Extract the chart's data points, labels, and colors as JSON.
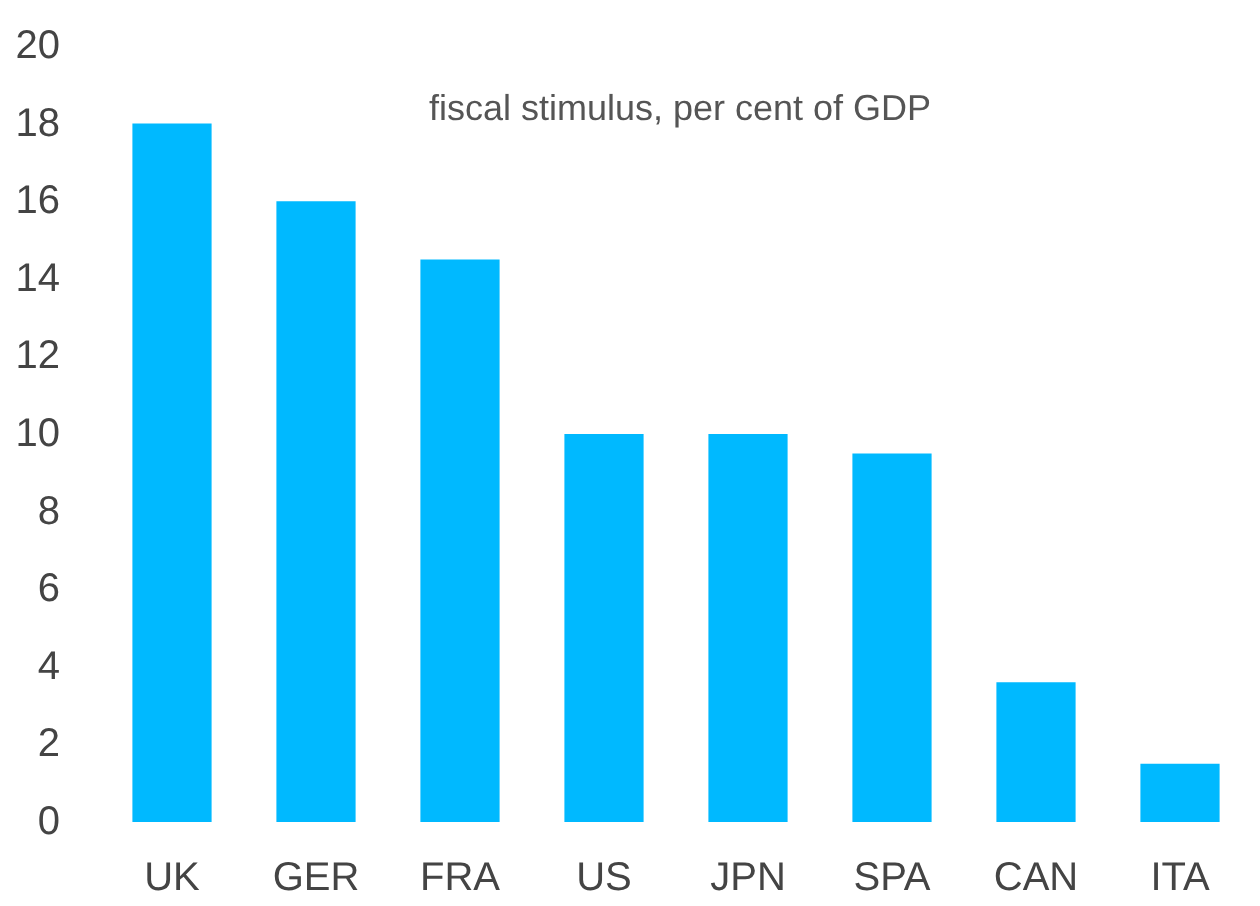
{
  "chart_data": {
    "type": "bar",
    "title": "fiscal stimulus, per cent of GDP",
    "categories": [
      "UK",
      "GER",
      "FRA",
      "US",
      "JPN",
      "SPA",
      "CAN",
      "ITA"
    ],
    "values": [
      18,
      16,
      14.5,
      10,
      10,
      9.5,
      3.6,
      1.5
    ],
    "color": "#00b9ff",
    "ylim": [
      0,
      20
    ],
    "yticks": [
      0,
      2,
      4,
      6,
      8,
      10,
      12,
      14,
      16,
      18,
      20
    ]
  }
}
